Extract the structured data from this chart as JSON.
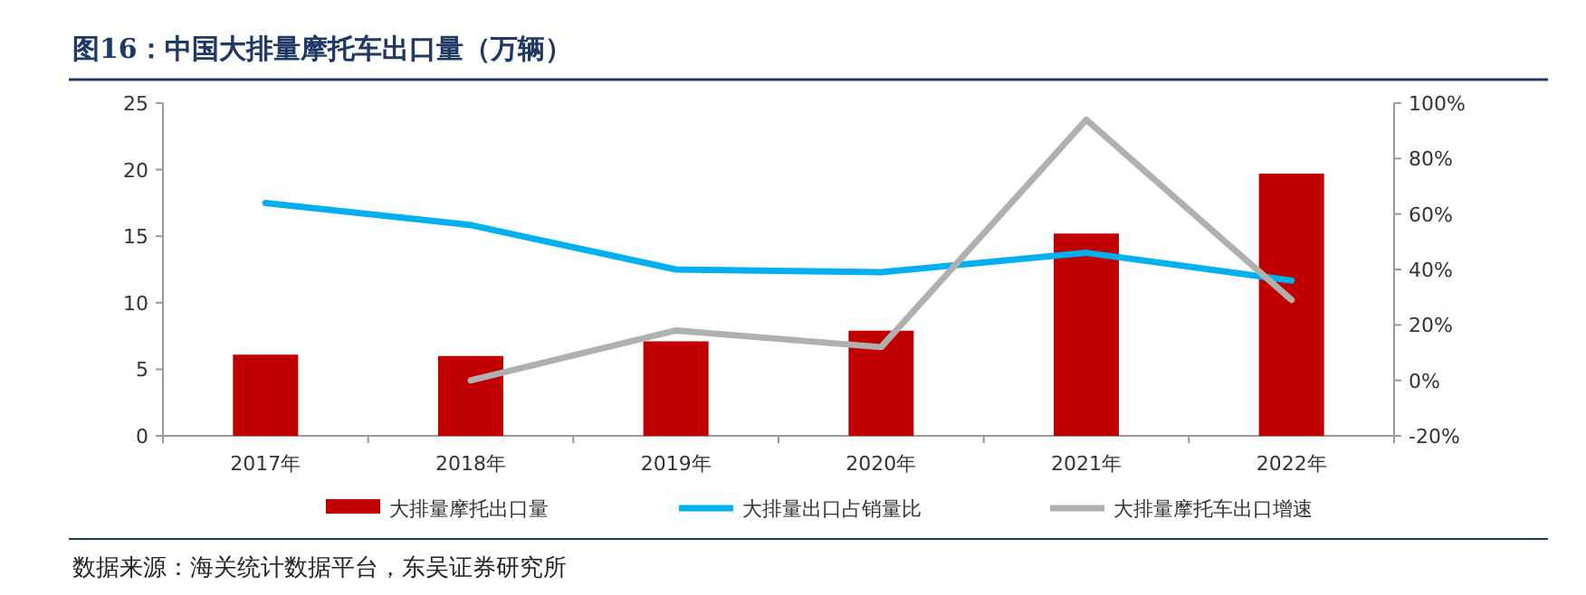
{
  "chart_data": {
    "type": "bar",
    "title": "图16：中国大排量摩托车出口量（万辆）",
    "annotations": [
      "数据来源：海关统计数据平台，东吴证券研究所"
    ],
    "categories": [
      "2017年",
      "2018年",
      "2019年",
      "2020年",
      "2021年",
      "2022年"
    ],
    "series": [
      {
        "name": "大排量摩托出口量",
        "color": "#c00000",
        "values": [
          6.1,
          6.0,
          7.1,
          7.9,
          15.2,
          19.7
        ]
      },
      {
        "name": "大排量出口占销量比",
        "type": "line",
        "axis": "y2",
        "color": "#00b0f0",
        "values": [
          64,
          56,
          40,
          39,
          46,
          36
        ]
      },
      {
        "name": "大排量摩托车出口增速",
        "type": "line",
        "axis": "y2",
        "color": "#b0b0b0",
        "values": [
          null,
          0,
          18,
          12,
          94,
          29
        ]
      }
    ],
    "ylim": [
      0,
      25
    ],
    "yticks": [
      0,
      5,
      10,
      15,
      20,
      25
    ],
    "y2lim": [
      -20,
      100
    ],
    "y2ticks": [
      {
        "value": -20,
        "label": "-20%"
      },
      {
        "value": 0,
        "label": "0%"
      },
      {
        "value": 20,
        "label": "20%"
      },
      {
        "value": 40,
        "label": "40%"
      },
      {
        "value": 60,
        "label": "60%"
      },
      {
        "value": 80,
        "label": "80%"
      },
      {
        "value": 100,
        "label": "100%"
      }
    ],
    "legend": "bottom",
    "grid": false
  }
}
